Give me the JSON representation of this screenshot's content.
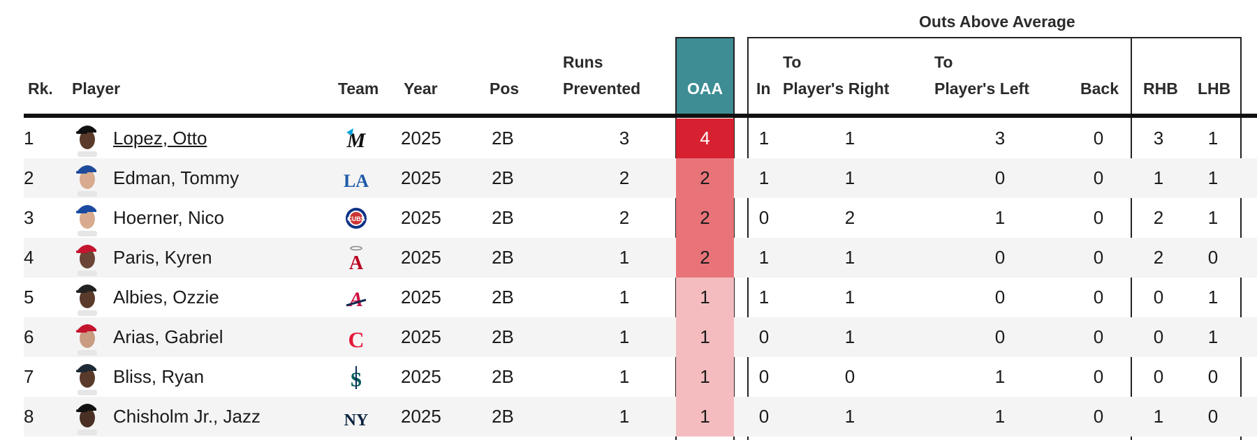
{
  "header": {
    "group_title": "Outs Above Average",
    "columns": {
      "rank": "Rk.",
      "player": "Player",
      "team": "Team",
      "year": "Year",
      "pos": "Pos",
      "runs_prevented_line1": "Runs",
      "runs_prevented_line2": "Prevented",
      "oaa": "OAA",
      "in": "In",
      "right_line1": "To",
      "right_line2": "Player's Right",
      "left_line1": "To",
      "left_line2": "Player's Left",
      "back": "Back",
      "rhb": "RHB",
      "lhb": "LHB"
    }
  },
  "colors": {
    "oaa_header": "#3e8d95",
    "oaa_scale": {
      "4": "#d72130",
      "2": "#e8747a",
      "1": "#f5bcbf"
    }
  },
  "rows": [
    {
      "rank": "1",
      "player": "Lopez, Otto",
      "team_logo": "marlins-logo",
      "year": "2025",
      "pos": "2B",
      "runs_prevented": "3",
      "oaa": "4",
      "in": "1",
      "right": "1",
      "left": "3",
      "back": "0",
      "rhb": "3",
      "lhb": "1"
    },
    {
      "rank": "2",
      "player": "Edman, Tommy",
      "team_logo": "dodgers-logo",
      "year": "2025",
      "pos": "2B",
      "runs_prevented": "2",
      "oaa": "2",
      "in": "1",
      "right": "1",
      "left": "0",
      "back": "0",
      "rhb": "1",
      "lhb": "1"
    },
    {
      "rank": "3",
      "player": "Hoerner, Nico",
      "team_logo": "cubs-logo",
      "year": "2025",
      "pos": "2B",
      "runs_prevented": "2",
      "oaa": "2",
      "in": "0",
      "right": "2",
      "left": "1",
      "back": "0",
      "rhb": "2",
      "lhb": "1"
    },
    {
      "rank": "4",
      "player": "Paris, Kyren",
      "team_logo": "angels-logo",
      "year": "2025",
      "pos": "2B",
      "runs_prevented": "1",
      "oaa": "2",
      "in": "1",
      "right": "1",
      "left": "0",
      "back": "0",
      "rhb": "2",
      "lhb": "0"
    },
    {
      "rank": "5",
      "player": "Albies, Ozzie",
      "team_logo": "braves-logo",
      "year": "2025",
      "pos": "2B",
      "runs_prevented": "1",
      "oaa": "1",
      "in": "1",
      "right": "1",
      "left": "0",
      "back": "0",
      "rhb": "0",
      "lhb": "1"
    },
    {
      "rank": "6",
      "player": "Arias, Gabriel",
      "team_logo": "guardians-logo",
      "year": "2025",
      "pos": "2B",
      "runs_prevented": "1",
      "oaa": "1",
      "in": "0",
      "right": "1",
      "left": "0",
      "back": "0",
      "rhb": "0",
      "lhb": "1"
    },
    {
      "rank": "7",
      "player": "Bliss, Ryan",
      "team_logo": "mariners-logo",
      "year": "2025",
      "pos": "2B",
      "runs_prevented": "1",
      "oaa": "1",
      "in": "0",
      "right": "0",
      "left": "1",
      "back": "0",
      "rhb": "0",
      "lhb": "0"
    },
    {
      "rank": "8",
      "player": "Chisholm Jr., Jazz",
      "team_logo": "yankees-logo",
      "year": "2025",
      "pos": "2B",
      "runs_prevented": "1",
      "oaa": "1",
      "in": "0",
      "right": "1",
      "left": "1",
      "back": "0",
      "rhb": "1",
      "lhb": "0"
    }
  ]
}
